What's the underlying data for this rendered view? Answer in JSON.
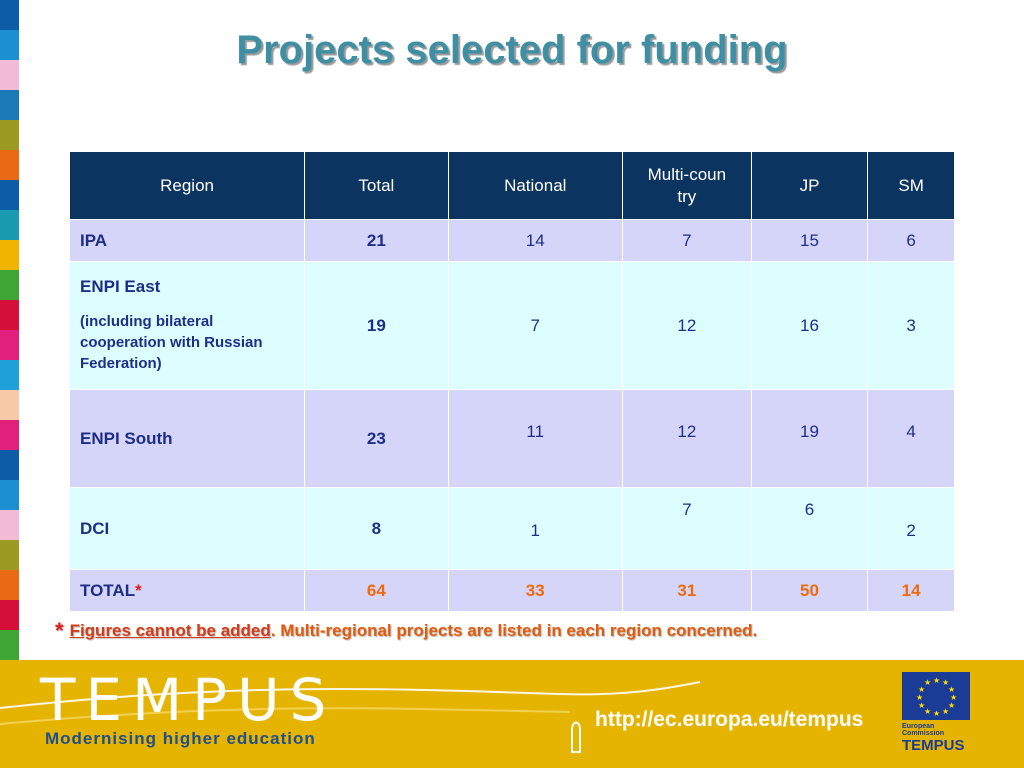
{
  "title": "Projects selected for funding",
  "table": {
    "headers": [
      "Region",
      "Total",
      "National",
      "Multi-country",
      "JP",
      "SM"
    ],
    "rows": [
      {
        "region": "IPA",
        "total": "21",
        "national": "14",
        "multi": "7",
        "jp": "15",
        "sm": "6"
      },
      {
        "region": "ENPI East",
        "region_note": "(including bilateral cooperation with Russian Federation)",
        "total": "19",
        "national": "7",
        "multi": "12",
        "jp": "16",
        "sm": "3"
      },
      {
        "region": "ENPI South",
        "total": "23",
        "national": "11",
        "multi": "12",
        "jp": "19",
        "sm": "4"
      },
      {
        "region": "DCI",
        "total": "8",
        "national": "1",
        "multi": "7",
        "jp": "6",
        "sm": "2"
      },
      {
        "region": "TOTAL",
        "star": "*",
        "total": "64",
        "national": "33",
        "multi": "31",
        "jp": "50",
        "sm": "14"
      }
    ]
  },
  "footnote": {
    "star": "*",
    "underlined": "Figures cannot be added",
    "rest": ". Multi-regional projects are listed in each region concerned."
  },
  "footer": {
    "logo": "TEMPUS",
    "tagline": "Modernising higher education",
    "url": "http://ec.europa.eu/tempus",
    "ec_label": "European Commission",
    "ec_name": "TEMPUS"
  },
  "colors": {
    "title": "#3f8fa4",
    "header_bg": "#0b3460",
    "row_lavender": "#d5d4f9",
    "row_cyan": "#ddfefe",
    "total_orange": "#ee6a0d",
    "footer_bg": "#e4b400",
    "stripe": [
      "#0d5ca8",
      "#1b8fd0",
      "#f2bcd6",
      "#1a7ab8",
      "#9b9b24",
      "#e86a15",
      "#0d5ca8",
      "#1b9bb0",
      "#f0b400",
      "#3fa535",
      "#d4103a",
      "#e0207a",
      "#1fa0d8",
      "#f8c9a6",
      "#e0207a",
      "#0d5ca8",
      "#1b8fd0",
      "#f2bcd6",
      "#9b9b24",
      "#e86a15",
      "#d4103a",
      "#3fa535"
    ]
  }
}
